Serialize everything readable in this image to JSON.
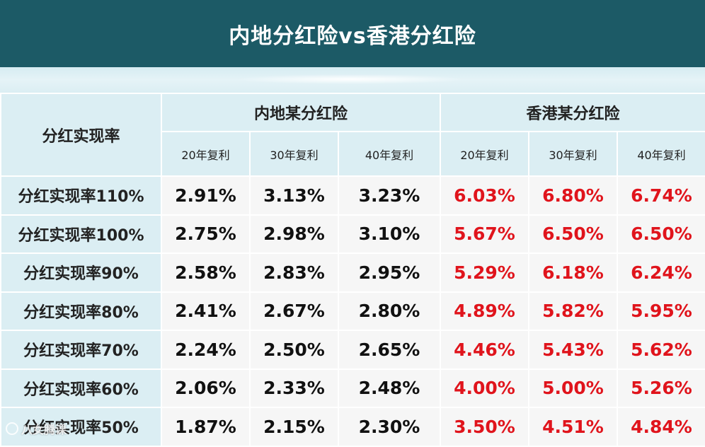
{
  "title": "内地分红险vs香港分红险",
  "colors": {
    "header_bg": "#1c5a66",
    "cell_header_bg": "#dbeef3",
    "hk_value": "#e0141c"
  },
  "chart_data": {
    "type": "table",
    "corner_label": "分红实现率",
    "groups": [
      "内地某分红险",
      "香港某分红险"
    ],
    "columns": [
      "20年复利",
      "30年复利",
      "40年复利",
      "20年复利",
      "30年复利",
      "40年复利"
    ],
    "rows": [
      {
        "label": "分红实现率110%",
        "values": [
          "2.91%",
          "3.13%",
          "3.23%",
          "6.03%",
          "6.80%",
          "6.74%"
        ]
      },
      {
        "label": "分红实现率100%",
        "values": [
          "2.75%",
          "2.98%",
          "3.10%",
          "5.67%",
          "6.50%",
          "6.50%"
        ]
      },
      {
        "label": "分红实现率90%",
        "values": [
          "2.58%",
          "2.83%",
          "2.95%",
          "5.29%",
          "6.18%",
          "6.24%"
        ]
      },
      {
        "label": "分红实现率80%",
        "values": [
          "2.41%",
          "2.67%",
          "2.80%",
          "4.89%",
          "5.82%",
          "5.95%"
        ]
      },
      {
        "label": "分红实现率70%",
        "values": [
          "2.24%",
          "2.50%",
          "2.65%",
          "4.46%",
          "5.43%",
          "5.62%"
        ]
      },
      {
        "label": "分红实现率60%",
        "values": [
          "2.06%",
          "2.33%",
          "2.48%",
          "4.00%",
          "5.00%",
          "5.26%"
        ]
      },
      {
        "label": "分红实现率50%",
        "values": [
          "1.87%",
          "2.15%",
          "2.30%",
          "3.50%",
          "4.51%",
          "4.84%"
        ]
      }
    ]
  },
  "watermark": "八女腾课"
}
